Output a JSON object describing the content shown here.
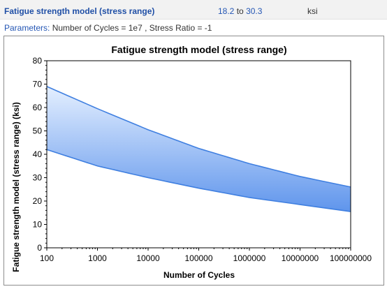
{
  "result": {
    "name": "Fatigue strength model (stress range)",
    "range_low": "18.2",
    "range_sep": "to",
    "range_high": "30.3",
    "unit": "ksi"
  },
  "parameters": {
    "label": "Parameters:",
    "text": "Number of Cycles = 1e7 , Stress Ratio = -1"
  },
  "colors": {
    "band_top": "#e4efff",
    "band_bottom": "#5f95ec",
    "boundary_line": "#3f7fe0",
    "link_text": "#2456b4"
  },
  "chart_data": {
    "type": "area",
    "title": "Fatigue strength model (stress range)",
    "xlabel": "Number of Cycles",
    "ylabel": "Fatigue strength model (stress range) (ksi)",
    "xscale": "log",
    "xlim": [
      100,
      100000000
    ],
    "ylim": [
      0,
      80
    ],
    "xticks": [
      "100",
      "1000",
      "10000",
      "100000",
      "1000000",
      "10000000",
      "100000000"
    ],
    "yticks": [
      "0",
      "10",
      "20",
      "30",
      "40",
      "50",
      "60",
      "70",
      "80"
    ],
    "grid": false,
    "legend": "none",
    "series": [
      {
        "x": [
          100,
          1000,
          10000,
          100000,
          1000000,
          10000000,
          100000000
        ],
        "values": [
          69,
          59.5,
          50.5,
          42.5,
          36,
          30.5,
          26
        ]
      },
      {
        "x": [
          100,
          1000,
          10000,
          100000,
          1000000,
          10000000,
          100000000
        ],
        "values": [
          42,
          35,
          30,
          25.5,
          21.5,
          18.5,
          15.5
        ]
      }
    ]
  }
}
